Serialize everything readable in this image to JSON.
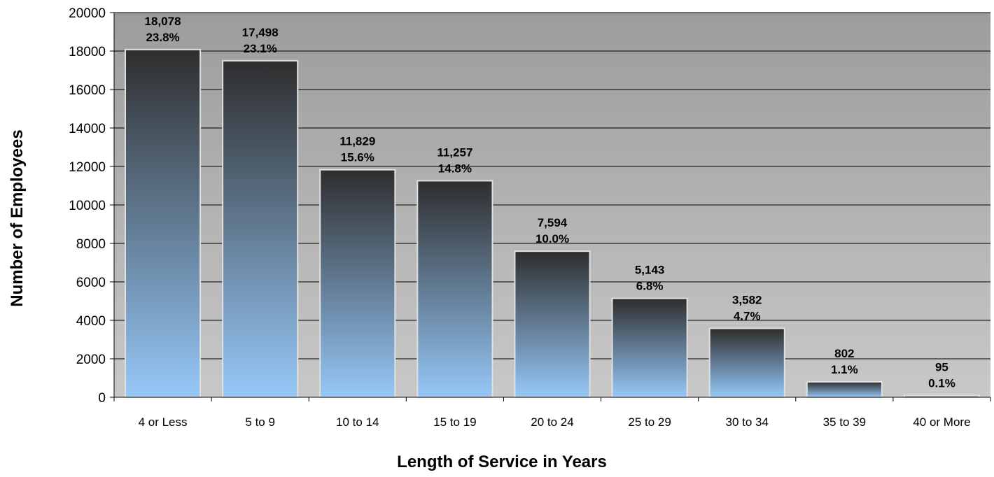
{
  "chart_data": {
    "type": "bar",
    "title": "",
    "xlabel": "Length of Service in Years",
    "ylabel": "Number of Employees",
    "categories": [
      "4 or Less",
      "5 to 9",
      "10 to 14",
      "15 to 19",
      "20 to 24",
      "25 to 29",
      "30 to 34",
      "35 to 39",
      "40 or More"
    ],
    "values": [
      18078,
      17498,
      11829,
      11257,
      7594,
      5143,
      3582,
      802,
      95
    ],
    "data_labels": [
      "18,078",
      "17,498",
      "11,829",
      "11,257",
      "7,594",
      "5,143",
      "3,582",
      "802",
      "95"
    ],
    "percent_labels": [
      "23.8%",
      "23.1%",
      "15.6%",
      "14.8%",
      "10.0%",
      "6.8%",
      "4.7%",
      "1.1%",
      "0.1%"
    ],
    "ylim": [
      0,
      20000
    ],
    "yticks": [
      "0",
      "2000",
      "4000",
      "6000",
      "8000",
      "10000",
      "12000",
      "14000",
      "16000",
      "18000",
      "20000"
    ],
    "grid": true,
    "legend": "none",
    "colors": {
      "plot_bg_top": "#9c9c9c",
      "plot_bg_bottom": "#c8c8c8",
      "bar_top": "#2e2e2e",
      "bar_bottom": "#96c8f8",
      "bar_outline": "#e0e0e0",
      "gridline": "#000000"
    }
  }
}
